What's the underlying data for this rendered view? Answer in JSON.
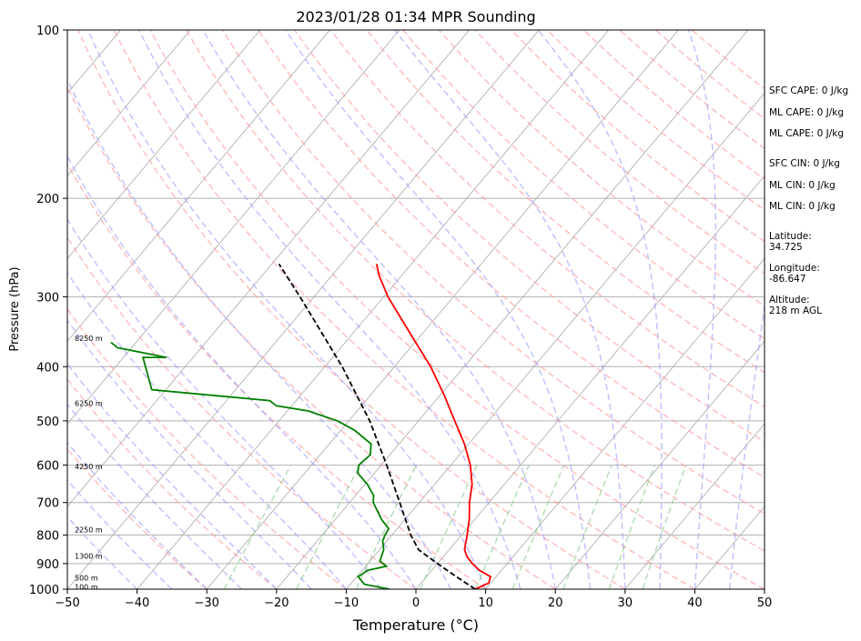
{
  "chart_data": {
    "type": "line",
    "title": "2023/01/28 01:34 MPR Sounding",
    "xlabel": "Temperature (°C)",
    "ylabel": "Pressure (hPa)",
    "xlim": [
      -50,
      50
    ],
    "ylim": [
      1000,
      100
    ],
    "y_scale": "log",
    "grid": true,
    "x_ticks": [
      -50,
      -40,
      -30,
      -20,
      -10,
      0,
      10,
      20,
      30,
      40,
      50
    ],
    "y_ticks": [
      100,
      200,
      300,
      400,
      500,
      600,
      700,
      800,
      900,
      1000
    ],
    "skew_t": true,
    "series": [
      {
        "key": "temperature",
        "color": "#ff0000",
        "points": [
          {
            "p": 1000,
            "t": 8.5
          },
          {
            "p": 975,
            "t": 9.7
          },
          {
            "p": 950,
            "t": 9.2
          },
          {
            "p": 925,
            "t": 6.8
          },
          {
            "p": 900,
            "t": 5.0
          },
          {
            "p": 875,
            "t": 3.4
          },
          {
            "p": 850,
            "t": 2.2
          },
          {
            "p": 800,
            "t": 0.8
          },
          {
            "p": 750,
            "t": -0.8
          },
          {
            "p": 700,
            "t": -2.8
          },
          {
            "p": 650,
            "t": -4.6
          },
          {
            "p": 600,
            "t": -7.2
          },
          {
            "p": 550,
            "t": -10.6
          },
          {
            "p": 500,
            "t": -14.8
          },
          {
            "p": 450,
            "t": -19.4
          },
          {
            "p": 400,
            "t": -24.8
          },
          {
            "p": 350,
            "t": -31.6
          },
          {
            "p": 300,
            "t": -39.4
          },
          {
            "p": 275,
            "t": -43.2
          },
          {
            "p": 262,
            "t": -45.0
          }
        ]
      },
      {
        "key": "dewpoint",
        "color": "#008000",
        "points": [
          {
            "p": 1000,
            "t": -3.8
          },
          {
            "p": 980,
            "t": -8.0
          },
          {
            "p": 950,
            "t": -9.8
          },
          {
            "p": 925,
            "t": -9.2
          },
          {
            "p": 910,
            "t": -7.0
          },
          {
            "p": 890,
            "t": -8.6
          },
          {
            "p": 850,
            "t": -9.4
          },
          {
            "p": 820,
            "t": -10.6
          },
          {
            "p": 800,
            "t": -11.0
          },
          {
            "p": 780,
            "t": -11.2
          },
          {
            "p": 750,
            "t": -13.4
          },
          {
            "p": 700,
            "t": -16.6
          },
          {
            "p": 680,
            "t": -17.4
          },
          {
            "p": 650,
            "t": -19.6
          },
          {
            "p": 620,
            "t": -22.4
          },
          {
            "p": 600,
            "t": -23.2
          },
          {
            "p": 575,
            "t": -22.8
          },
          {
            "p": 550,
            "t": -24.0
          },
          {
            "p": 520,
            "t": -28.0
          },
          {
            "p": 500,
            "t": -31.6
          },
          {
            "p": 480,
            "t": -37.0
          },
          {
            "p": 470,
            "t": -42.2
          },
          {
            "p": 460,
            "t": -43.8
          },
          {
            "p": 440,
            "t": -62.0
          },
          {
            "p": 385,
            "t": -67.2
          },
          {
            "p": 385,
            "t": -63.8
          },
          {
            "p": 370,
            "t": -72.0
          },
          {
            "p": 362,
            "t": -73.6
          }
        ]
      },
      {
        "key": "parcel",
        "color": "#000000",
        "dashed": true,
        "points": [
          {
            "p": 1000,
            "t": 8.5
          },
          {
            "p": 950,
            "t": 4.3
          },
          {
            "p": 900,
            "t": 0.0
          },
          {
            "p": 850,
            "t": -4.4
          },
          {
            "p": 800,
            "t": -7.3
          },
          {
            "p": 700,
            "t": -12.8
          },
          {
            "p": 600,
            "t": -19.2
          },
          {
            "p": 500,
            "t": -27.0
          },
          {
            "p": 400,
            "t": -37.5
          },
          {
            "p": 300,
            "t": -52.0
          },
          {
            "p": 262,
            "t": -59.0
          }
        ]
      }
    ],
    "height_labels": [
      {
        "p": 356,
        "label": "8250 m"
      },
      {
        "p": 465,
        "label": "6250 m"
      },
      {
        "p": 603,
        "label": "4250 m"
      },
      {
        "p": 782,
        "label": "2250 m"
      },
      {
        "p": 872,
        "label": "1300 m"
      },
      {
        "p": 955,
        "label": "500 m"
      },
      {
        "p": 990,
        "label": "100 m"
      }
    ],
    "indices": [
      {
        "label": "SFC CAPE: 0 J/kg"
      },
      {
        "label": "ML CAPE: 0 J/kg"
      },
      {
        "label": "ML CAPE: 0 J/kg"
      },
      {
        "label": "SFC CIN: 0 J/kg"
      },
      {
        "label": "ML CIN: 0 J/kg"
      },
      {
        "label": "ML CIN: 0 J/kg"
      }
    ],
    "location": {
      "latitude_label": "Latitude:",
      "latitude": "34.725",
      "longitude_label": "Longitude:",
      "longitude": "-86.647",
      "altitude_label": "Altitude:",
      "altitude": "218 m AGL"
    }
  }
}
